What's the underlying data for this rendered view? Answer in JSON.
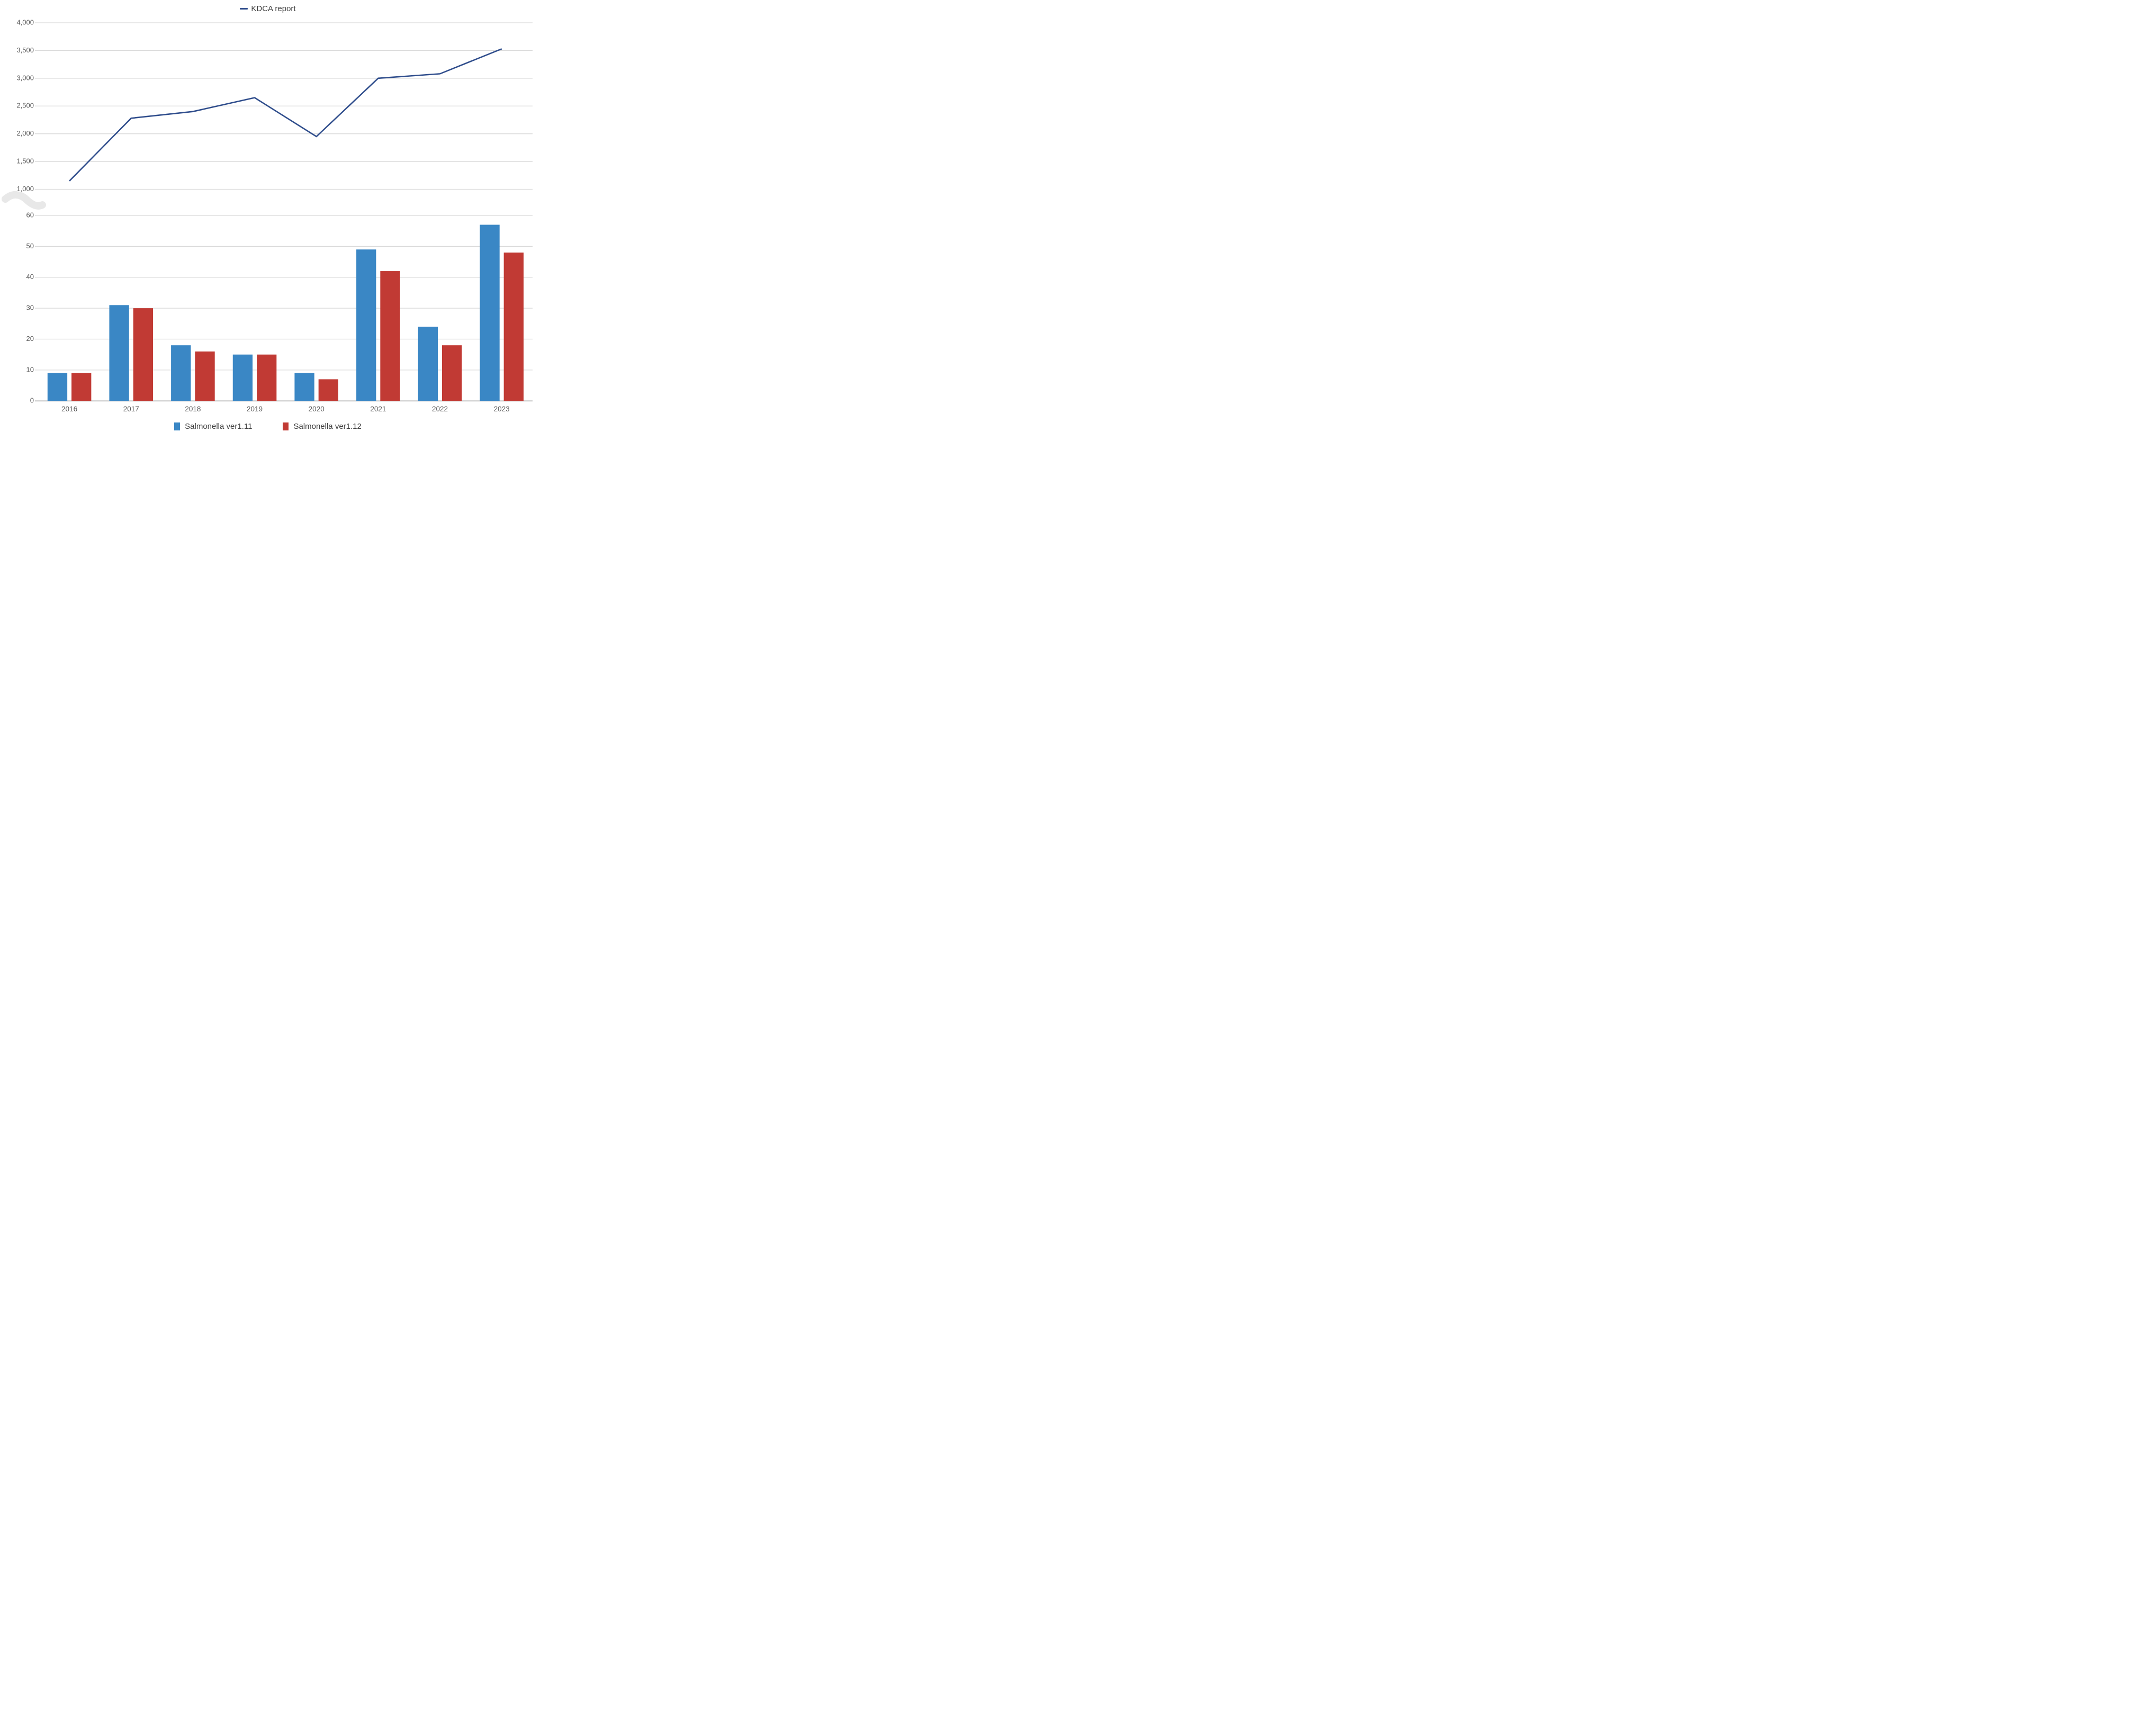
{
  "top_legend": {
    "label": "KDCA report",
    "marker_color": "#2f4d8c"
  },
  "bottom_legend": {
    "items": [
      {
        "label": "Salmonella ver1.11",
        "color": "#3a87c5"
      },
      {
        "label": "Salmonella ver1.12",
        "color": "#c13a34"
      }
    ]
  },
  "chart_data": {
    "type": "combo: line in upper panel + grouped bars in lower panel, shared category axis with axis break",
    "categories": [
      "2016",
      "2017",
      "2018",
      "2019",
      "2020",
      "2021",
      "2022",
      "2023"
    ],
    "top_panel": {
      "type": "line",
      "series": [
        {
          "name": "KDCA report",
          "color": "#2f4d8c",
          "values": [
            1150,
            2280,
            2400,
            2650,
            1950,
            3000,
            3080,
            3530
          ]
        }
      ],
      "ylim": [
        1000,
        4000
      ],
      "ytick_step": 500,
      "ytick_labels": [
        "1,000",
        "1,500",
        "2,000",
        "2,500",
        "3,000",
        "3,500",
        "4,000"
      ],
      "grid": true,
      "legend_position": "top-center"
    },
    "bottom_panel": {
      "type": "bar",
      "series": [
        {
          "name": "Salmonella ver1.11",
          "color": "#3a87c5",
          "values": [
            9,
            31,
            18,
            15,
            9,
            49,
            24,
            57
          ]
        },
        {
          "name": "Salmonella ver1.12",
          "color": "#c13a34",
          "values": [
            9,
            30,
            16,
            15,
            7,
            42,
            18,
            48
          ]
        }
      ],
      "ylim": [
        0,
        60
      ],
      "ytick_step": 10,
      "ytick_labels": [
        "0",
        "10",
        "20",
        "30",
        "40",
        "50",
        "60"
      ],
      "grid": true,
      "legend_position": "bottom-center"
    },
    "axis_break": true,
    "styles": {
      "gridline_color": "#d9d9d9",
      "baseline_color": "#c6c6c6",
      "tick_label_color": "#595959",
      "break_color": "#e8e8e8"
    }
  }
}
